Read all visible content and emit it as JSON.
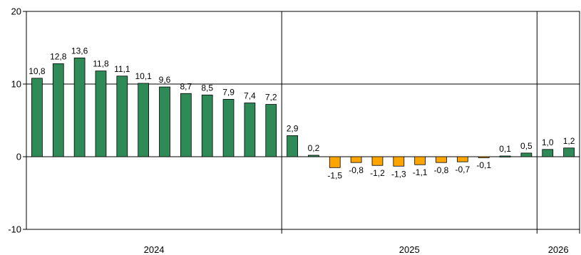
{
  "chart_data": {
    "type": "bar",
    "title": "",
    "xlabel": "",
    "ylabel": "",
    "ylim": [
      -10,
      20
    ],
    "yticks": [
      -10,
      0,
      10,
      20
    ],
    "ytick_labels": [
      "-10",
      "0",
      "10",
      "20"
    ],
    "grid": true,
    "legend": "none",
    "values": [
      10.8,
      12.8,
      13.6,
      11.8,
      11.1,
      10.1,
      9.6,
      8.7,
      8.5,
      7.9,
      7.4,
      7.2,
      2.9,
      0.2,
      -1.5,
      -0.8,
      -1.2,
      -1.3,
      -1.1,
      -0.8,
      -0.7,
      -0.1,
      0.1,
      0.5,
      1.0,
      1.2
    ],
    "data_labels": [
      "10,8",
      "12,8",
      "13,6",
      "11,8",
      "11,1",
      "10,1",
      "9,6",
      "8,7",
      "8,5",
      "7,9",
      "7,4",
      "7,2",
      "2,9",
      "0,2",
      "-1,5",
      "-0,8",
      "-1,2",
      "-1,3",
      "-1,1",
      "-0,8",
      "-0,7",
      "-0,1",
      "0,1",
      "0,5",
      "1,0",
      "1,2"
    ],
    "groups": [
      {
        "label": "2024",
        "count": 12
      },
      {
        "label": "2025",
        "count": 12
      },
      {
        "label": "2026",
        "count": 2
      }
    ],
    "colors": {
      "positive": "#2e8b57",
      "negative": "#ffa500",
      "bar_edge": "#000000",
      "axis": "#000000"
    }
  }
}
